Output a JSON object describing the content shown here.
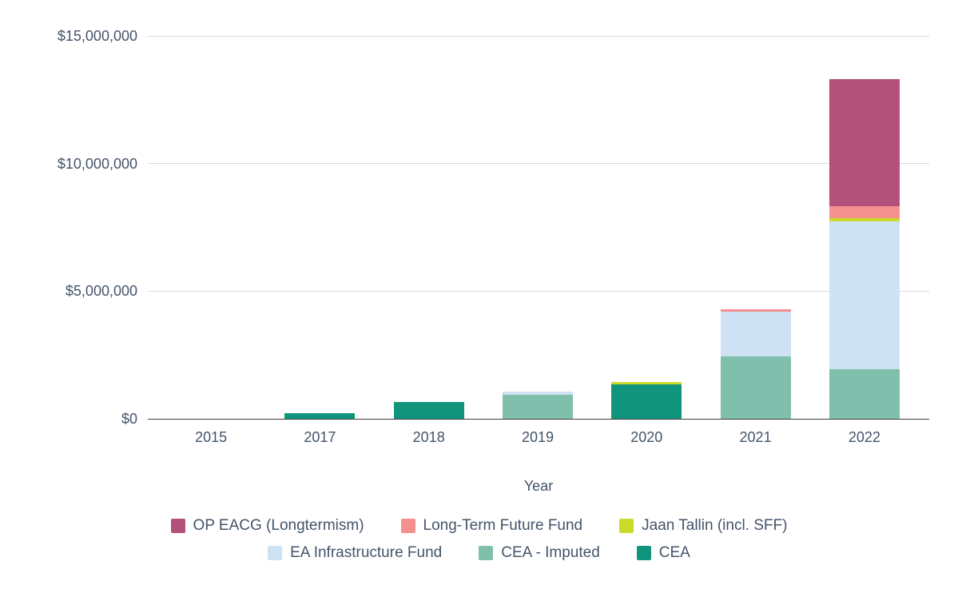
{
  "chart_data": {
    "type": "bar",
    "stacked": true,
    "title": "",
    "xlabel": "Year",
    "ylabel": "",
    "categories": [
      "2015",
      "2017",
      "2018",
      "2019",
      "2020",
      "2021",
      "2022"
    ],
    "series": [
      {
        "name": "CEA",
        "color": "#10957c",
        "values": [
          0,
          220000,
          650000,
          0,
          1350000,
          0,
          0
        ]
      },
      {
        "name": "CEA - Imputed",
        "color": "#7fbfab",
        "values": [
          0,
          0,
          0,
          950000,
          0,
          2450000,
          1950000
        ]
      },
      {
        "name": "EA Infrastructure Fund",
        "color": "#cfe2f3",
        "values": [
          0,
          0,
          0,
          120000,
          0,
          1750000,
          5800000
        ]
      },
      {
        "name": "Jaan Tallin (incl. SFF)",
        "color": "#c9da2a",
        "values": [
          0,
          0,
          0,
          0,
          80000,
          0,
          120000
        ]
      },
      {
        "name": "Long-Term Future Fund",
        "color": "#f4908e",
        "values": [
          0,
          0,
          0,
          0,
          0,
          80000,
          450000
        ]
      },
      {
        "name": "OP EACG (Longtermism)",
        "color": "#b2527a",
        "values": [
          0,
          0,
          0,
          0,
          0,
          0,
          5000000
        ]
      }
    ],
    "y_axis": {
      "max": 15000000,
      "ticks": [
        {
          "value": 0,
          "label": "$0"
        },
        {
          "value": 5000000,
          "label": "$5,000,000"
        },
        {
          "value": 10000000,
          "label": "$10,000,000"
        },
        {
          "value": 15000000,
          "label": "$15,000,000"
        }
      ]
    },
    "legend_rows": [
      [
        "OP EACG (Longtermism)",
        "Long-Term Future Fund",
        "Jaan Tallin (incl. SFF)"
      ],
      [
        "EA Infrastructure Fund",
        "CEA - Imputed",
        "CEA"
      ]
    ],
    "grid": true,
    "legend_position": "bottom",
    "colors": {
      "text": "#44546a",
      "gridline": "#d9d9d9",
      "axis_line": "#3d3d3d",
      "background": "#ffffff"
    }
  }
}
